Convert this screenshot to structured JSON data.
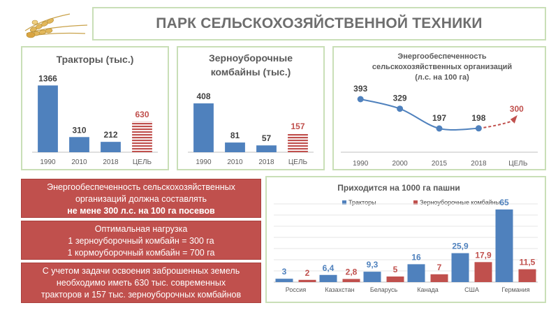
{
  "header": {
    "title": "ПАРК СЕЛЬСКОХОЗЯЙСТВЕННОЙ ТЕХНИКИ"
  },
  "colors": {
    "blue": "#4f81bd",
    "red": "#c0504d",
    "panel_border": "#c9dfb7",
    "text": "#595959"
  },
  "info_boxes": [
    {
      "line1": "Энергообеспеченность сельскохозяйственных",
      "line2": "организаций должна составлять",
      "line3": "не мене 300 л.с. на 100 га посевов"
    },
    {
      "line1": "Оптимальная нагрузка",
      "line2": "1 зерноуборочный комбайн = 300 га",
      "line3": "1 кормоуборочный комбайн = 700 га"
    },
    {
      "line1": "С учетом задачи освоения заброшенных земель",
      "line2": "необходимо иметь 630 тыс. современных",
      "line3": "тракторов и 157 тыс. зерноуборочных комбайнов"
    }
  ],
  "chart_data": [
    {
      "type": "bar",
      "title": "Тракторы (тыс.)",
      "categories": [
        "1990",
        "2010",
        "2018",
        "ЦЕЛЬ"
      ],
      "values": [
        1366,
        310,
        212,
        630
      ],
      "value_labels": [
        "1366",
        "310",
        "212",
        "630"
      ],
      "target_index": 3,
      "ylim": [
        0,
        1400
      ]
    },
    {
      "type": "bar",
      "title": "Зерноуборочные комбайны (тыс.)",
      "title_lines": [
        "Зерноуборочные",
        "комбайны (тыс.)"
      ],
      "categories": [
        "1990",
        "2010",
        "2018",
        "ЦЕЛЬ"
      ],
      "values": [
        408,
        81,
        57,
        157
      ],
      "value_labels": [
        "408",
        "81",
        "57",
        "157"
      ],
      "target_index": 3,
      "ylim": [
        0,
        420
      ]
    },
    {
      "type": "line",
      "title": "Энергообеспеченность сельскохозяйственных организаций (л.с. на 100 га)",
      "title_lines": [
        "Энергообеспеченность",
        "сельскохозяйственных организаций",
        "(л.с. на 100 га)"
      ],
      "categories": [
        "1990",
        "2000",
        "2015",
        "2018",
        "ЦЕЛЬ"
      ],
      "values": [
        393,
        329,
        197,
        198,
        300
      ],
      "value_labels": [
        "393",
        "329",
        "197",
        "198",
        "300"
      ],
      "target_index": 4,
      "ylim": [
        150,
        420
      ]
    },
    {
      "type": "bar",
      "title": "Приходится на 1000 га пашни",
      "categories": [
        "Россия",
        "Казахстан",
        "Беларусь",
        "Канада",
        "США",
        "Германия"
      ],
      "series": [
        {
          "name": "Тракторы",
          "values": [
            3,
            6.4,
            9.3,
            16,
            25.9,
            65
          ],
          "labels": [
            "3",
            "6,4",
            "9,3",
            "16",
            "25,9",
            "65"
          ]
        },
        {
          "name": "Зерноуборочные комбайны",
          "values": [
            2,
            2.8,
            5,
            7,
            17.9,
            11.5
          ],
          "labels": [
            "2",
            "2,8",
            "5",
            "7",
            "17,9",
            "11,5"
          ]
        }
      ],
      "legend": "top-left",
      "grid": true,
      "ylim": [
        0,
        70
      ]
    }
  ]
}
